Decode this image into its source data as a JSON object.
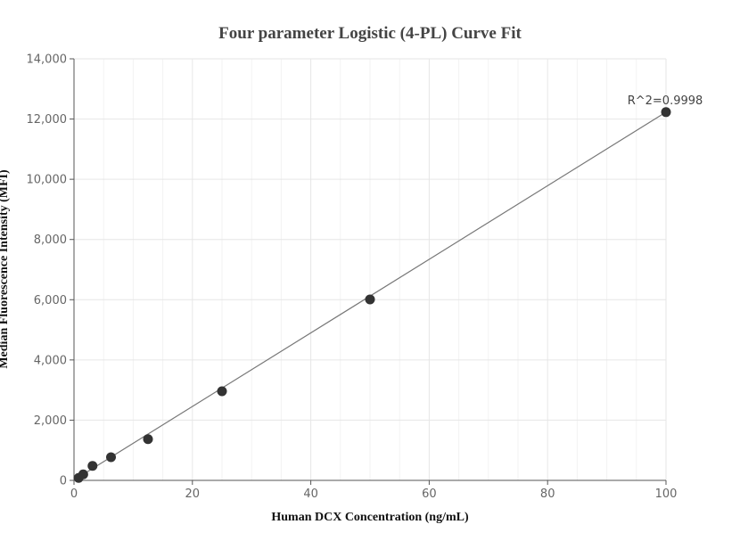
{
  "chart_data": {
    "type": "scatter",
    "title": "Four parameter Logistic (4-PL) Curve Fit",
    "xlabel": "Human DCX Concentration (ng/mL)",
    "ylabel": "Median Fluorescence Intensity (MFI)",
    "xlim": [
      0,
      100
    ],
    "ylim": [
      0,
      14000
    ],
    "x_ticks": [
      0,
      20,
      40,
      60,
      80,
      100
    ],
    "x_tick_labels": [
      "0",
      "20",
      "40",
      "60",
      "80",
      "100"
    ],
    "y_ticks": [
      0,
      2000,
      4000,
      6000,
      8000,
      10000,
      12000,
      14000
    ],
    "y_tick_labels": [
      "0",
      "2,000",
      "4,000",
      "6,000",
      "8,000",
      "10,000",
      "12,000",
      "14,000"
    ],
    "grid": true,
    "legend": "none",
    "series": [
      {
        "points": [
          {
            "x": 0.78,
            "y": 80
          },
          {
            "x": 1.56,
            "y": 200
          },
          {
            "x": 3.13,
            "y": 480
          },
          {
            "x": 6.25,
            "y": 770
          },
          {
            "x": 12.5,
            "y": 1370
          },
          {
            "x": 25,
            "y": 2960
          },
          {
            "x": 50,
            "y": 6010
          },
          {
            "x": 100,
            "y": 12230
          }
        ],
        "color": "#333333"
      }
    ],
    "fit_line": {
      "x": [
        0,
        100
      ],
      "y": [
        10,
        12230
      ],
      "color": "#777777"
    },
    "annotation": {
      "text": "R^2=0.9998",
      "x": 100,
      "y": 12230
    }
  }
}
